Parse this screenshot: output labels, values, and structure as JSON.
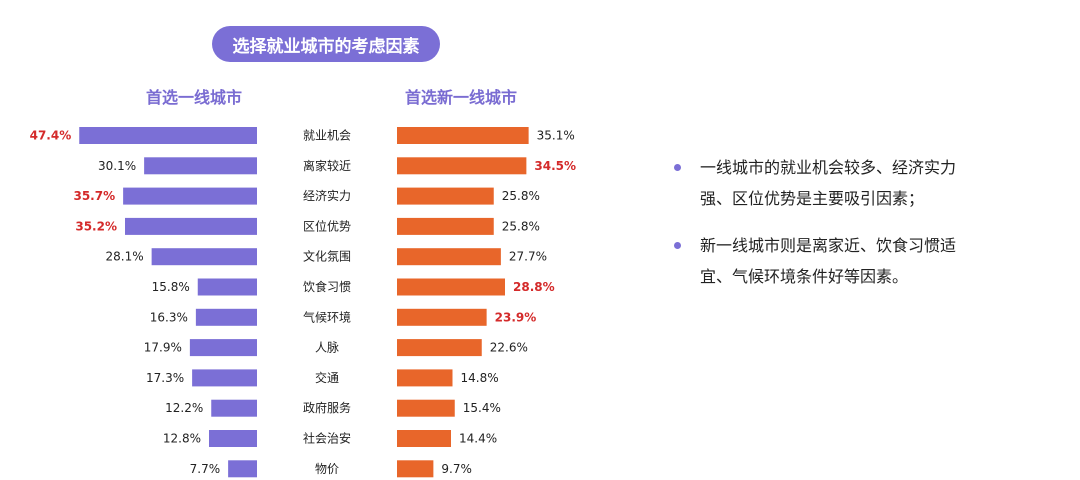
{
  "header": {
    "title": "选择就业城市的考虑因素"
  },
  "groups": {
    "left_title": "首选一线城市",
    "right_title": "首选新一线城市"
  },
  "chart_data": {
    "type": "bar",
    "categories": [
      "就业机会",
      "离家较近",
      "经济实力",
      "区位优势",
      "文化氛围",
      "饮食习惯",
      "气候环境",
      "人脉",
      "交通",
      "政府服务",
      "社会治安",
      "物价"
    ],
    "series": [
      {
        "name": "首选一线城市",
        "values": [
          47.4,
          30.1,
          35.7,
          35.2,
          28.1,
          15.8,
          16.3,
          17.9,
          17.3,
          12.2,
          12.8,
          7.7
        ],
        "labels": [
          "47.4%",
          "30.1%",
          "35.7%",
          "35.2%",
          "28.1%",
          "15.8%",
          "16.3%",
          "17.9%",
          "17.3%",
          "12.2%",
          "12.8%",
          "7.7%"
        ],
        "highlight": [
          true,
          false,
          true,
          true,
          false,
          false,
          false,
          false,
          false,
          false,
          false,
          false
        ],
        "color": "#7b6fd6"
      },
      {
        "name": "首选新一线城市",
        "values": [
          35.1,
          34.5,
          25.8,
          25.8,
          27.7,
          28.8,
          23.9,
          22.6,
          14.8,
          15.4,
          14.4,
          9.7
        ],
        "labels": [
          "35.1%",
          "34.5%",
          "25.8%",
          "25.8%",
          "27.7%",
          "28.8%",
          "23.9%",
          "22.6%",
          "14.8%",
          "15.4%",
          "14.4%",
          "9.7%"
        ],
        "highlight": [
          false,
          true,
          false,
          false,
          false,
          true,
          true,
          false,
          false,
          false,
          false,
          false
        ],
        "color": "#e8662a"
      }
    ],
    "highlight_color": "#d42a2a",
    "label_color": "#222222"
  },
  "notes": [
    "一线城市的就业机会较多、经济实力强、区位优势是主要吸引因素；",
    "新一线城市则是离家近、饮食习惯适宜、气候环境条件好等因素。"
  ]
}
